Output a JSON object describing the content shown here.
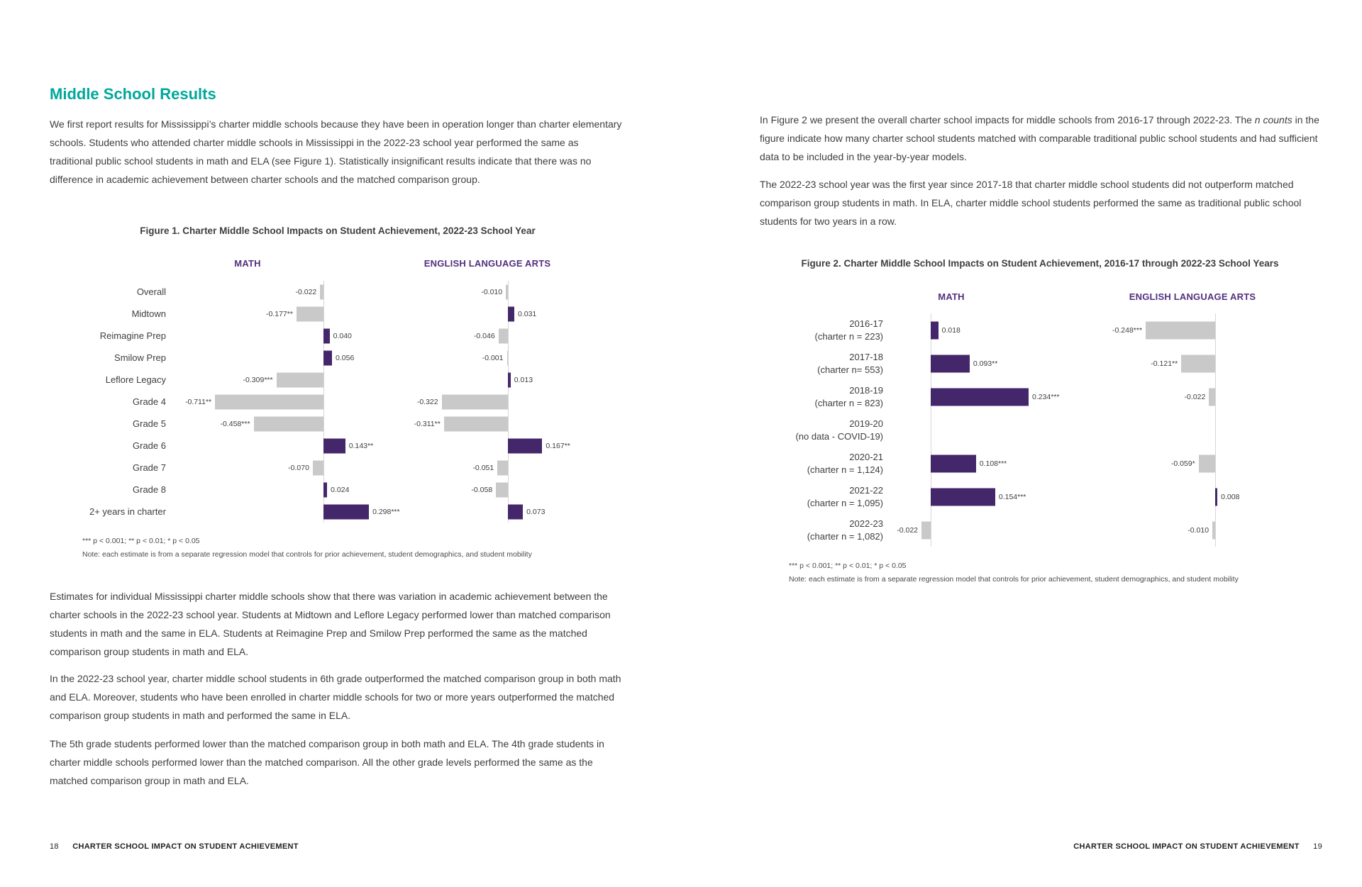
{
  "colors": {
    "heading_teal": "#00a79b",
    "series_header_purple": "#53307f",
    "bar_positive_purple": "#44276b",
    "bar_negative_gray": "#c9c9c9"
  },
  "page_left": {
    "heading": "Middle School Results",
    "paragraphs": [
      "We first report results for Mississippi’s charter middle schools because they have been in operation longer than charter elementary schools. Students who attended charter middle schools in Mississippi in the 2022-23 school year performed the same as traditional public school students in math and ELA (see Figure 1). Statistically insignificant results indicate that there was no difference in academic achievement between charter schools and the matched comparison group.",
      "Estimates for individual Mississippi charter middle schools show that there was variation in academic achievement between the charter schools in the 2022-23 school year. Students at Midtown and Leflore Legacy performed lower than matched comparison students in math and the same in ELA. Students at Reimagine Prep and Smilow Prep performed the same as the matched comparison group students in math and ELA.",
      "In the 2022-23 school year, charter middle school students in 6th grade outperformed the matched comparison group in both math and ELA. Moreover, students who have been enrolled in charter middle schools for two or more years outperformed the matched comparison group students in math and performed the same in ELA.",
      "The 5th grade students performed lower than the matched comparison group in both math and ELA. The 4th grade students in charter middle schools performed lower than the matched comparison. All the other grade levels performed the same as the matched comparison group in math and ELA."
    ],
    "footer": {
      "page_number": "18",
      "text": "CHARTER SCHOOL IMPACT ON STUDENT ACHIEVEMENT"
    }
  },
  "page_right": {
    "para1_pre": "In Figure 2 we present the overall charter school impacts for middle schools from 2016-17 through 2022-23. The ",
    "para1_italic": "n counts",
    "para1_post": " in the figure indicate how many charter school students matched with comparable traditional public school students and had sufficient data to be included in the year-by-year models.",
    "para2": "The 2022-23 school year was the first year since 2017-18 that charter middle school students did not outperform matched comparison group students in math. In ELA, charter middle school students performed the same as traditional public school students for two years in a row.",
    "footer": {
      "text": "CHARTER SCHOOL IMPACT ON STUDENT ACHIEVEMENT",
      "page_number": "19"
    }
  },
  "chart_data": [
    {
      "type": "bar",
      "orientation": "horizontal",
      "title": "Figure 1. Charter Middle School Impacts on Student Achievement, 2022-23 School Year",
      "categories": [
        "Overall",
        "Midtown",
        "Reimagine Prep",
        "Smilow Prep",
        "Leflore Legacy",
        "Grade 4",
        "Grade 5",
        "Grade 6",
        "Grade 7",
        "Grade 8",
        "2+ years in charter"
      ],
      "series": [
        {
          "name": "MATH",
          "values": [
            -0.022,
            -0.177,
            0.04,
            0.056,
            -0.309,
            -0.711,
            -0.458,
            0.143,
            -0.07,
            0.024,
            0.298
          ],
          "labels": [
            "-0.022",
            "-0.177**",
            "0.040",
            "0.056",
            "-0.309***",
            "-0.711**",
            "-0.458***",
            "0.143**",
            "-0.070",
            "0.024",
            "0.298***"
          ]
        },
        {
          "name": "ENGLISH LANGUAGE ARTS",
          "values": [
            -0.01,
            0.031,
            -0.046,
            -0.001,
            0.013,
            -0.322,
            -0.311,
            0.167,
            -0.051,
            -0.058,
            0.073
          ],
          "labels": [
            "-0.010",
            "0.031",
            "-0.046",
            "-0.001",
            "0.013",
            "-0.322",
            "-0.311**",
            "0.167**",
            "-0.051",
            "-0.058",
            "0.073"
          ]
        }
      ],
      "positive_color": "#44276b",
      "negative_color": "#c9c9c9",
      "footnote": "*** p < 0.001; ** p < 0.01; * p < 0.05",
      "note": "Note: each estimate is from a separate regression model that controls for prior achievement, student demographics, and student mobility"
    },
    {
      "type": "bar",
      "orientation": "horizontal",
      "title": "Figure 2. Charter Middle School Impacts on Student Achievement, 2016-17 through 2022-23 School Years",
      "categories": [
        [
          "2016-17",
          "(charter n = 223)"
        ],
        [
          "2017-18",
          "(charter n= 553)"
        ],
        [
          "2018-19",
          "(charter n = 823)"
        ],
        [
          "2019-20",
          "(no data - COVID-19)"
        ],
        [
          "2020-21",
          "(charter n = 1,124)"
        ],
        [
          "2021-22",
          "(charter n = 1,095)"
        ],
        [
          "2022-23",
          "(charter n = 1,082)"
        ]
      ],
      "series": [
        {
          "name": "MATH",
          "values": [
            0.018,
            0.093,
            0.234,
            null,
            0.108,
            0.154,
            -0.022
          ],
          "labels": [
            "0.018",
            "0.093**",
            "0.234***",
            null,
            "0.108***",
            "0.154***",
            "-0.022"
          ]
        },
        {
          "name": "ENGLISH LANGUAGE ARTS",
          "values": [
            -0.248,
            -0.121,
            -0.022,
            null,
            -0.059,
            0.008,
            -0.01
          ],
          "labels": [
            "-0.248***",
            "-0.121**",
            "-0.022",
            null,
            "-0.059*",
            "0.008",
            "-0.010"
          ]
        }
      ],
      "positive_color": "#44276b",
      "negative_color": "#c9c9c9",
      "footnote": "*** p < 0.001; ** p < 0.01; * p < 0.05",
      "note": "Note: each estimate is from a separate regression model that controls for prior achievement, student demographics, and student mobility"
    }
  ]
}
